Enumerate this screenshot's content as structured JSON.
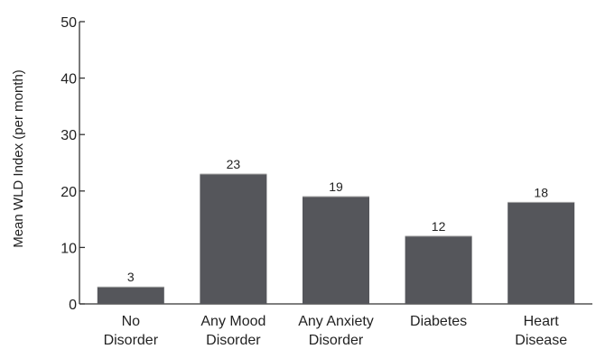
{
  "chart_data": {
    "type": "bar",
    "title": "",
    "xlabel": "",
    "ylabel": "Mean WLD Index (per month)",
    "ylim": [
      0,
      50
    ],
    "yticks": [
      "0",
      "10",
      "20",
      "30",
      "40",
      "50"
    ],
    "categories": [
      [
        "No",
        "Disorder"
      ],
      [
        "Any Mood",
        "Disorder"
      ],
      [
        "Any Anxiety",
        "Disorder"
      ],
      [
        "Diabetes"
      ],
      [
        "Heart",
        "Disease"
      ]
    ],
    "values": [
      3,
      23,
      19,
      12,
      18
    ],
    "data_labels": [
      "3",
      "23",
      "19",
      "12",
      "18"
    ],
    "grid": false,
    "colors": {
      "bar": "#55565b",
      "axis": "#333333"
    }
  }
}
